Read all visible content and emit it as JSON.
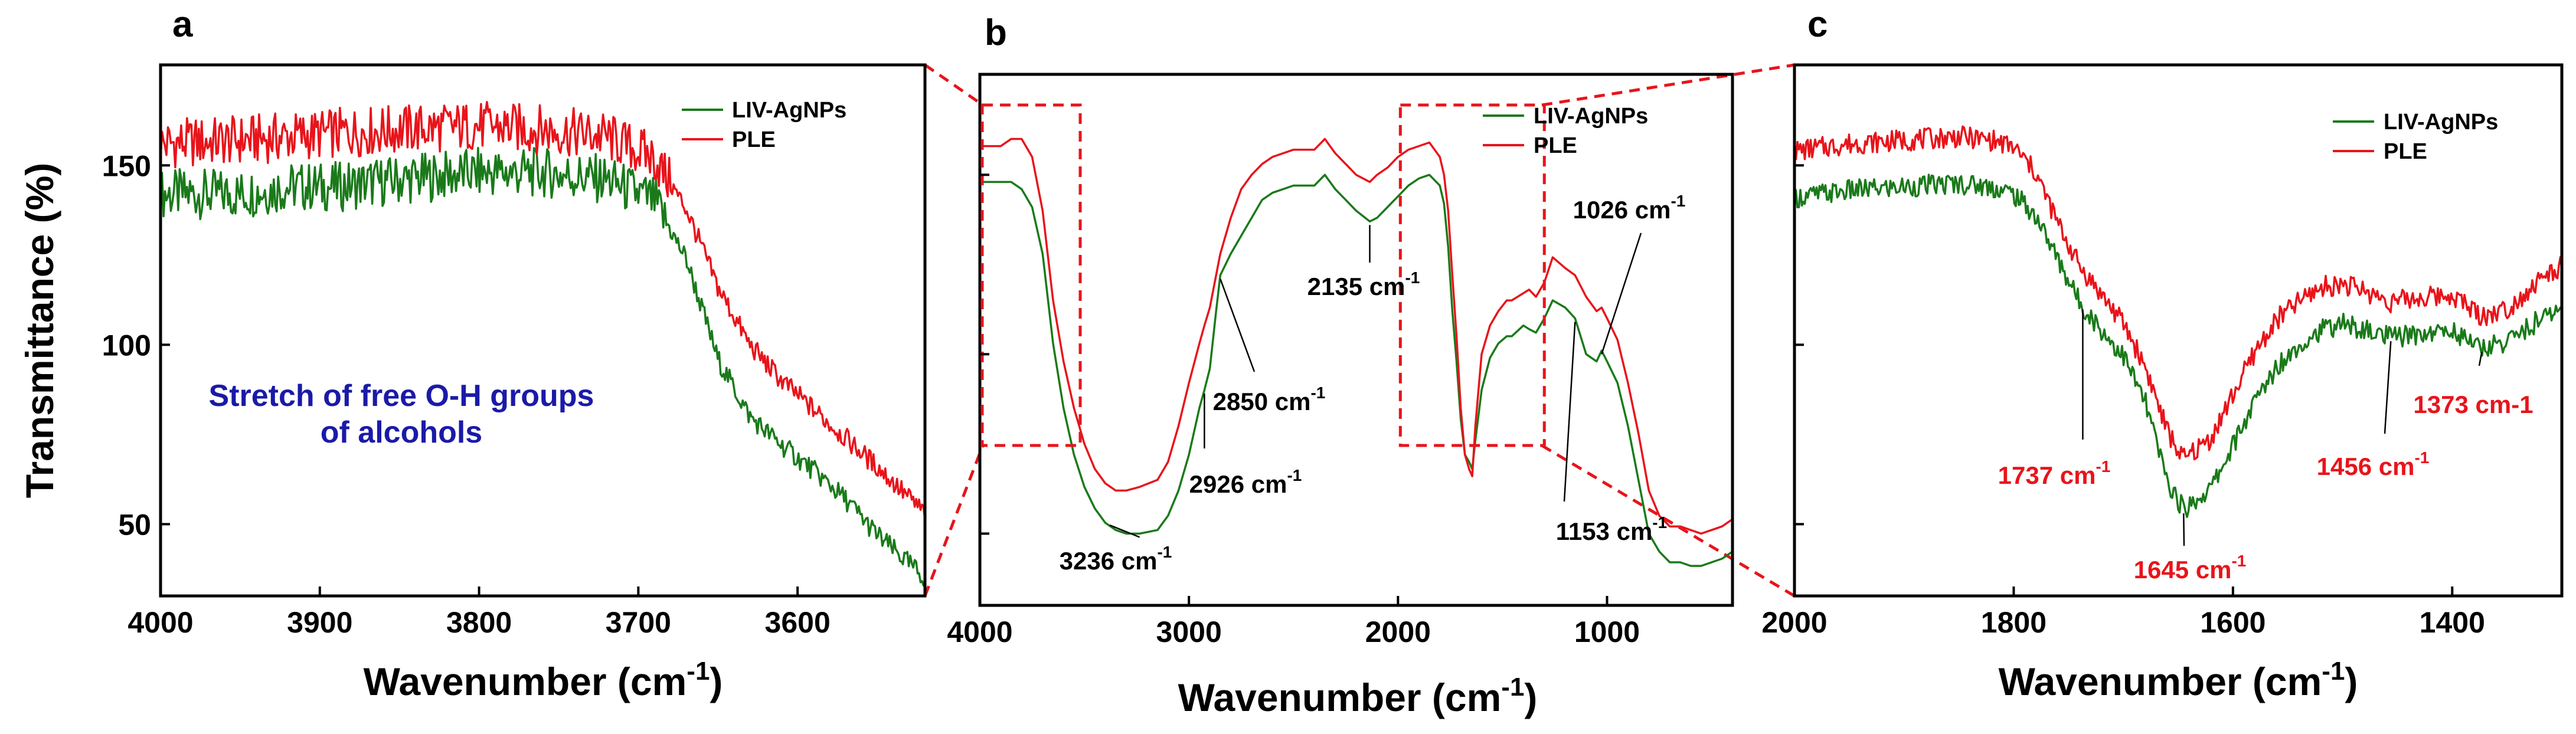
{
  "colors": {
    "series_green": "#1a7a1a",
    "series_red": "#e8141b",
    "zoom_box": "#e8141b",
    "note": "#1a1aa8",
    "annotation_red": "#e8141b"
  },
  "chart_data": [
    {
      "type": "line",
      "panel": "a",
      "xlabel": "Wavenumber (cm",
      "xlabel_sup": "-1",
      "xlabel_end": ")",
      "ylabel": "Transmittance (%)",
      "xlim": [
        4000,
        3520
      ],
      "ylim": [
        30,
        178
      ],
      "x_reversed": true,
      "xticks": [
        4000,
        3900,
        3800,
        3700,
        3600
      ],
      "yticks": [
        50,
        100,
        150
      ],
      "legend": {
        "position": "top-right",
        "entries": [
          "LIV-AgNPs",
          "PLE"
        ]
      },
      "note": [
        "Stretch of free O-H groups",
        "of alcohols"
      ],
      "series": [
        {
          "name": "LIV-AgNPs",
          "color": "#1a7a1a",
          "noisy": true,
          "x": [
            4000,
            3950,
            3920,
            3890,
            3850,
            3800,
            3760,
            3720,
            3690,
            3670,
            3650,
            3630,
            3610,
            3590,
            3570,
            3550,
            3520
          ],
          "y": [
            142,
            142,
            144,
            144,
            146,
            148,
            148,
            146,
            140,
            124,
            96,
            80,
            72,
            65,
            57,
            47,
            35
          ]
        },
        {
          "name": "PLE",
          "color": "#e8141b",
          "noisy": true,
          "x": [
            4000,
            3950,
            3920,
            3890,
            3850,
            3800,
            3760,
            3720,
            3690,
            3670,
            3650,
            3630,
            3610,
            3590,
            3570,
            3550,
            3520
          ],
          "y": [
            156,
            157,
            158,
            159,
            160,
            161,
            160,
            158,
            152,
            138,
            116,
            100,
            90,
            82,
            74,
            66,
            53
          ]
        }
      ]
    },
    {
      "type": "line",
      "panel": "b",
      "xlabel": "Wavenumber (cm",
      "xlabel_sup": "-1",
      "xlabel_end": ")",
      "xlim": [
        4000,
        400
      ],
      "ylim": [
        30,
        178
      ],
      "x_reversed": true,
      "xticks": [
        4000,
        3000,
        2000,
        1000
      ],
      "legend": {
        "position": "top-right",
        "entries": [
          "LIV-AgNPs",
          "PLE"
        ]
      },
      "annotations": [
        {
          "text": "3236 cm",
          "sup": "-1",
          "x": 3236
        },
        {
          "text": "2926 cm",
          "sup": "-1",
          "x": 2926
        },
        {
          "text": "2850 cm",
          "sup": "-1",
          "x": 2850
        },
        {
          "text": "2135 cm",
          "sup": "-1",
          "x": 2135
        },
        {
          "text": "1026 cm",
          "sup": "-1",
          "x": 1026
        },
        {
          "text": "1153 cm",
          "sup": "-1",
          "x": 1153
        }
      ],
      "zoom_regions": [
        {
          "x": [
            4000,
            3520
          ]
        },
        {
          "x": [
            2000,
            1300
          ]
        }
      ],
      "series": [
        {
          "name": "LIV-AgNPs",
          "color": "#1a7a1a",
          "x": [
            4000,
            3900,
            3850,
            3800,
            3750,
            3700,
            3650,
            3600,
            3550,
            3500,
            3450,
            3400,
            3350,
            3300,
            3236,
            3150,
            3100,
            3050,
            3000,
            2950,
            2926,
            2900,
            2870,
            2850,
            2800,
            2750,
            2700,
            2650,
            2600,
            2500,
            2400,
            2350,
            2300,
            2250,
            2200,
            2135,
            2100,
            2050,
            2000,
            1950,
            1900,
            1850,
            1800,
            1780,
            1760,
            1740,
            1720,
            1700,
            1680,
            1660,
            1645,
            1630,
            1600,
            1560,
            1520,
            1480,
            1456,
            1400,
            1373,
            1340,
            1300,
            1260,
            1200,
            1153,
            1100,
            1050,
            1026,
            1000,
            950,
            900,
            850,
            800,
            750,
            700,
            650,
            600,
            550,
            500,
            450,
            400
          ],
          "y": [
            148,
            148,
            148,
            146,
            141,
            128,
            103,
            85,
            72,
            63,
            57,
            53,
            51,
            50,
            50,
            51,
            55,
            62,
            72,
            85,
            90,
            96,
            112,
            122,
            128,
            133,
            138,
            143,
            145,
            147,
            147,
            150,
            146,
            143,
            140,
            137,
            138,
            141,
            144,
            147,
            149,
            150,
            147,
            142,
            130,
            112,
            98,
            82,
            72,
            70,
            68,
            76,
            90,
            99,
            103,
            105,
            105,
            108,
            107,
            106,
            110,
            115,
            113,
            110,
            100,
            98,
            101,
            98,
            92,
            80,
            65,
            50,
            45,
            42,
            42,
            41,
            41,
            42,
            43,
            45
          ]
        },
        {
          "name": "PLE",
          "color": "#e8141b",
          "x": [
            4000,
            3900,
            3850,
            3800,
            3750,
            3700,
            3650,
            3600,
            3550,
            3500,
            3450,
            3400,
            3350,
            3300,
            3236,
            3150,
            3100,
            3050,
            3000,
            2950,
            2926,
            2900,
            2870,
            2850,
            2800,
            2750,
            2700,
            2650,
            2600,
            2500,
            2400,
            2350,
            2300,
            2250,
            2200,
            2135,
            2100,
            2050,
            2000,
            1950,
            1900,
            1850,
            1800,
            1780,
            1760,
            1740,
            1720,
            1700,
            1680,
            1660,
            1645,
            1630,
            1600,
            1560,
            1520,
            1480,
            1456,
            1400,
            1373,
            1340,
            1300,
            1260,
            1200,
            1153,
            1100,
            1050,
            1026,
            1000,
            950,
            900,
            850,
            800,
            750,
            700,
            650,
            600,
            550,
            500,
            450,
            400
          ],
          "y": [
            158,
            158,
            160,
            160,
            155,
            140,
            115,
            98,
            85,
            75,
            68,
            64,
            62,
            62,
            63,
            65,
            70,
            80,
            92,
            103,
            108,
            113,
            122,
            128,
            138,
            146,
            150,
            153,
            155,
            157,
            157,
            160,
            156,
            153,
            150,
            148,
            150,
            152,
            155,
            157,
            158,
            159,
            155,
            150,
            140,
            122,
            105,
            85,
            72,
            68,
            66,
            80,
            100,
            108,
            112,
            115,
            115,
            117,
            118,
            116,
            120,
            127,
            124,
            122,
            116,
            112,
            113,
            110,
            104,
            92,
            78,
            62,
            55,
            52,
            52,
            51,
            50,
            51,
            52,
            54
          ]
        }
      ]
    },
    {
      "type": "line",
      "panel": "c",
      "xlabel": "Wavenumber (cm",
      "xlabel_sup": "-1",
      "xlabel_end": ")",
      "xlim": [
        2000,
        1300
      ],
      "ylim": [
        30,
        178
      ],
      "x_reversed": true,
      "xticks": [
        2000,
        1800,
        1600,
        1400
      ],
      "legend": {
        "position": "top-right",
        "entries": [
          "LIV-AgNPs",
          "PLE"
        ]
      },
      "annotations": [
        {
          "text": "1737 cm",
          "sup": "-1",
          "x": 1737
        },
        {
          "text": "1645 cm",
          "sup": "-1",
          "x": 1645
        },
        {
          "text": "1456 cm",
          "sup": "-1",
          "x": 1456
        },
        {
          "text": "1373 cm-1",
          "sup": "",
          "x": 1373
        }
      ],
      "series": [
        {
          "name": "LIV-AgNPs",
          "color": "#1a7a1a",
          "noisy": true,
          "x": [
            2000,
            1950,
            1900,
            1850,
            1820,
            1800,
            1780,
            1760,
            1740,
            1720,
            1700,
            1680,
            1660,
            1645,
            1620,
            1600,
            1580,
            1560,
            1540,
            1520,
            1500,
            1480,
            1456,
            1430,
            1400,
            1373,
            1350,
            1320,
            1300
          ],
          "y": [
            141,
            143,
            144,
            145,
            144,
            142,
            136,
            124,
            112,
            104,
            97,
            84,
            62,
            54,
            60,
            72,
            84,
            94,
            100,
            104,
            106,
            104,
            102,
            103,
            104,
            99,
            101,
            107,
            110
          ]
        },
        {
          "name": "PLE",
          "color": "#e8141b",
          "noisy": true,
          "x": [
            2000,
            1950,
            1900,
            1850,
            1820,
            1800,
            1780,
            1760,
            1740,
            1720,
            1700,
            1680,
            1660,
            1645,
            1620,
            1600,
            1580,
            1560,
            1540,
            1520,
            1500,
            1480,
            1456,
            1430,
            1400,
            1373,
            1350,
            1320,
            1300
          ],
          "y": [
            154,
            156,
            157,
            158,
            157,
            155,
            148,
            134,
            122,
            114,
            106,
            94,
            76,
            68,
            74,
            86,
            98,
            107,
            112,
            116,
            117,
            115,
            112,
            113,
            114,
            108,
            110,
            118,
            122
          ]
        }
      ]
    }
  ]
}
